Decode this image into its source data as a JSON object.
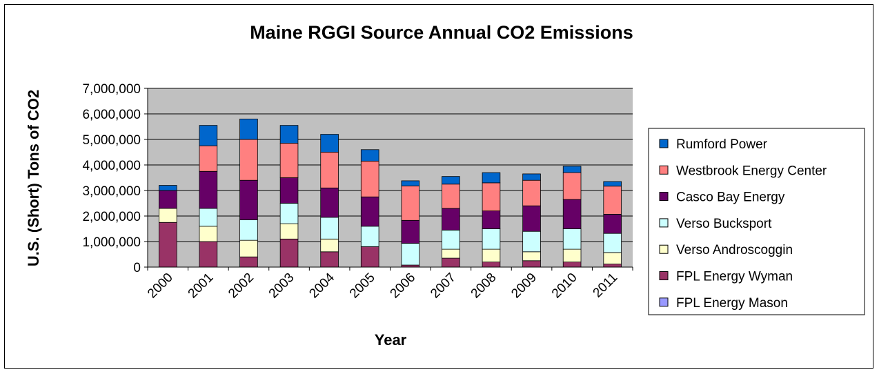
{
  "chart_data": {
    "type": "bar",
    "stacked": true,
    "title": "Maine RGGI Source Annual CO2 Emissions",
    "xlabel": "Year",
    "ylabel": "U.S. (Short) Tons of CO2",
    "ylim": [
      0,
      7000000
    ],
    "yticks": [
      "0",
      "1,000,000",
      "2,000,000",
      "3,000,000",
      "4,000,000",
      "5,000,000",
      "6,000,000",
      "7,000,000"
    ],
    "ytick_values": [
      0,
      1000000,
      2000000,
      3000000,
      4000000,
      5000000,
      6000000,
      7000000
    ],
    "grid": true,
    "legend_position": "right",
    "categories": [
      "2000",
      "2001",
      "2002",
      "2003",
      "2004",
      "2005",
      "2006",
      "2007",
      "2008",
      "2009",
      "2010",
      "2011"
    ],
    "series": [
      {
        "name": "FPL Energy Mason",
        "color": "#9999ff",
        "values": [
          0,
          0,
          0,
          0,
          0,
          0,
          0,
          0,
          0,
          0,
          0,
          0
        ]
      },
      {
        "name": "FPL Energy Wyman",
        "color": "#993366",
        "values": [
          1750000,
          1000000,
          400000,
          1100000,
          600000,
          800000,
          80000,
          350000,
          200000,
          250000,
          200000,
          120000
        ]
      },
      {
        "name": "Verso Androscoggin",
        "color": "#ffffcc",
        "values": [
          550000,
          600000,
          650000,
          600000,
          500000,
          0,
          0,
          350000,
          500000,
          350000,
          500000,
          450000
        ]
      },
      {
        "name": "Verso Bucksport",
        "color": "#ccffff",
        "values": [
          0,
          700000,
          800000,
          800000,
          850000,
          800000,
          850000,
          750000,
          800000,
          800000,
          800000,
          750000
        ]
      },
      {
        "name": "Casco Bay Energy",
        "color": "#660066",
        "values": [
          700000,
          1450000,
          1550000,
          1000000,
          1150000,
          1150000,
          900000,
          850000,
          700000,
          1000000,
          1150000,
          750000
        ]
      },
      {
        "name": "Westbrook Energy Center",
        "color": "#ff8080",
        "values": [
          0,
          1000000,
          1600000,
          1350000,
          1400000,
          1400000,
          1350000,
          950000,
          1100000,
          1000000,
          1050000,
          1100000
        ]
      },
      {
        "name": "Rumford Power",
        "color": "#0066cc",
        "values": [
          200000,
          800000,
          800000,
          700000,
          700000,
          450000,
          200000,
          300000,
          400000,
          250000,
          250000,
          180000
        ]
      }
    ]
  }
}
